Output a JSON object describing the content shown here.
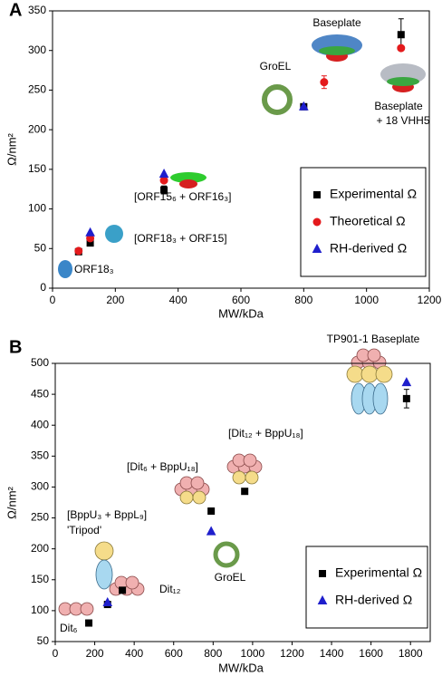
{
  "chart_data": [
    {
      "type": "scatter",
      "panel_label": "A",
      "x_label": "MW/kDa",
      "y_label": "Ω/nm²",
      "x": [
        83,
        120,
        355,
        800,
        865,
        1110
      ],
      "series": [
        {
          "name": "Experimental Ω",
          "color": "#000000",
          "marker": "square",
          "values": [
            46,
            57,
            124,
            229,
            null,
            320
          ],
          "errors": [
            null,
            null,
            5,
            null,
            null,
            20
          ]
        },
        {
          "name": "Theoretical Ω",
          "color": "#e41a1c",
          "marker": "circle",
          "values": [
            47,
            63,
            136,
            null,
            260,
            303
          ],
          "errors": [
            null,
            null,
            null,
            null,
            8,
            null
          ]
        },
        {
          "name": "RH-derived Ω",
          "color": "#1f1fcc",
          "marker": "triangle",
          "values": [
            null,
            70,
            144,
            229,
            null,
            null
          ]
        }
      ],
      "xlim": [
        0,
        1200
      ],
      "xticks": [
        0,
        200,
        400,
        600,
        800,
        1000,
        1200
      ],
      "ylim": [
        0,
        350
      ],
      "yticks": [
        0,
        50,
        100,
        150,
        200,
        250,
        300,
        350
      ],
      "legend": "lower right",
      "annotations": [
        "Baseplate",
        "GroEL",
        "Baseplate",
        "+ 18 VHH5",
        "[ORF15₆ + ORF16₃]",
        "[ORF18₃ + ORF15]",
        "ORF18₃"
      ]
    },
    {
      "type": "scatter",
      "panel_label": "B",
      "x_label": "MW/kDa",
      "y_label": "Ω/nm²",
      "x": [
        170,
        265,
        340,
        790,
        960,
        1780
      ],
      "series": [
        {
          "name": "Experimental Ω",
          "color": "#000000",
          "marker": "square",
          "values": [
            80,
            110,
            133,
            261,
            293,
            443
          ],
          "errors": [
            null,
            null,
            null,
            5,
            null,
            15
          ]
        },
        {
          "name": "RH-derived Ω",
          "color": "#1f1fcc",
          "marker": "triangle",
          "values": [
            null,
            113,
            null,
            228,
            null,
            469
          ]
        }
      ],
      "xlim": [
        0,
        1900
      ],
      "xticks": [
        0,
        200,
        400,
        600,
        800,
        1000,
        1200,
        1400,
        1600,
        1800
      ],
      "ylim": [
        50,
        500
      ],
      "yticks": [
        50,
        100,
        150,
        200,
        250,
        300,
        350,
        400,
        450,
        500
      ],
      "legend": "lower right",
      "annotations": [
        "TP901-1 Baseplate",
        "[Dit₁₂ + BppU₁₈]",
        "[Dit₆ + BppU₁₈]",
        "[BppU₃ + BppL₉]",
        "'Tripod'",
        "GroEL",
        "Dit₁₂",
        "Dit₆"
      ]
    }
  ]
}
